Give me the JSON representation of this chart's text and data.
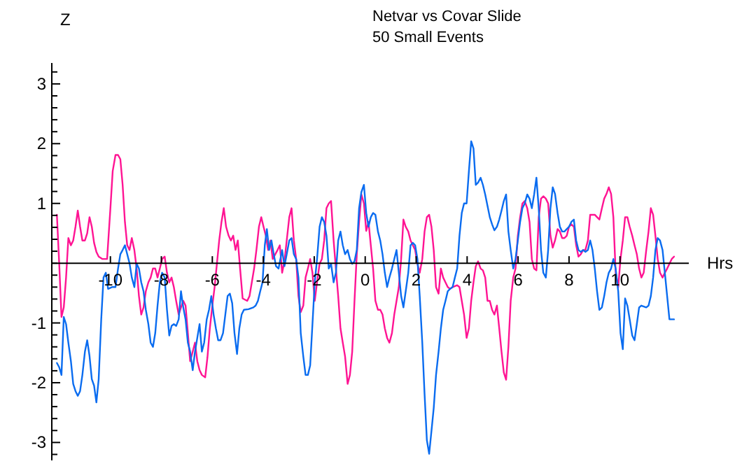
{
  "chart_data": {
    "type": "line",
    "title": "Netvar vs Covar Slide",
    "subtitle": "50 Small Events",
    "xlabel": "Hrs",
    "ylabel": "Z",
    "xlim": [
      -12.3,
      12.7
    ],
    "ylim": [
      -3.3,
      3.35
    ],
    "xticks": [
      -10,
      -8,
      -6,
      -4,
      -2,
      0,
      2,
      4,
      6,
      8,
      10
    ],
    "yticks": [
      {
        "value": -3.2,
        "label": null
      },
      -3,
      {
        "value": -2.8,
        "label": null
      },
      {
        "value": -2.6,
        "label": null
      },
      {
        "value": -2.4,
        "label": null
      },
      {
        "value": -2.2,
        "label": null
      },
      -2,
      {
        "value": -1.8,
        "label": null
      },
      {
        "value": -1.6,
        "label": null
      },
      {
        "value": -1.4,
        "label": null
      },
      {
        "value": -1.2,
        "label": null
      },
      -1,
      {
        "value": -0.8,
        "label": null
      },
      {
        "value": -0.6,
        "label": null
      },
      {
        "value": -0.4,
        "label": null
      },
      {
        "value": -0.2,
        "label": null
      },
      {
        "value": 0,
        "label": null
      },
      {
        "value": 0.2,
        "label": null
      },
      {
        "value": 0.4,
        "label": null
      },
      {
        "value": 0.6,
        "label": null
      },
      {
        "value": 0.8,
        "label": null
      },
      1,
      {
        "value": 1.2,
        "label": null
      },
      {
        "value": 1.4,
        "label": null
      },
      {
        "value": 1.6,
        "label": null
      },
      {
        "value": 1.8,
        "label": null
      },
      2,
      {
        "value": 2.2,
        "label": null
      },
      {
        "value": 2.4,
        "label": null
      },
      {
        "value": 2.6,
        "label": null
      },
      {
        "value": 2.8,
        "label": null
      },
      3,
      {
        "value": 3.2,
        "label": null
      }
    ],
    "line_style": "solid",
    "series": [
      {
        "color": "#ff1493",
        "x": [
          -12.1,
          -12.01,
          -11.92,
          -11.83,
          -11.74,
          -11.65,
          -11.55,
          -11.46,
          -11.37,
          -11.28,
          -11.19,
          -11.1,
          -11,
          -10.91,
          -10.82,
          -10.73,
          -10.64,
          -10.55,
          -10.46,
          -10.31,
          -10.13,
          -10,
          -9.91,
          -9.8,
          -9.7,
          -9.61,
          -9.52,
          -9.43,
          -9.34,
          -9.25,
          -9.16,
          -9.06,
          -8.97,
          -8.88,
          -8.79,
          -8.7,
          -8.61,
          -8.51,
          -8.42,
          -8.33,
          -8.24,
          -8.15,
          -8.06,
          -7.97,
          -7.87,
          -7.78,
          -7.69,
          -7.6,
          -7.51,
          -7.42,
          -7.32,
          -7.23,
          -7.14,
          -7.05,
          -6.96,
          -6.87,
          -6.77,
          -6.68,
          -6.59,
          -6.5,
          -6.41,
          -6.28,
          -6.19,
          -6.1,
          -6,
          -5.91,
          -5.82,
          -5.73,
          -5.64,
          -5.55,
          -5.46,
          -5.36,
          -5.27,
          -5.18,
          -5.09,
          -5,
          -4.91,
          -4.81,
          -4.63,
          -4.54,
          -4.45,
          -4.36,
          -4.27,
          -4.17,
          -4.08,
          -3.99,
          -3.9,
          -3.81,
          -3.72,
          -3.63,
          -3.53,
          -3.44,
          -3.35,
          -3.26,
          -3.17,
          -3.08,
          -2.98,
          -2.89,
          -2.8,
          -2.71,
          -2.62,
          -2.53,
          -2.43,
          -2.34,
          -2.25,
          -2.16,
          -2.07,
          -1.98,
          -1.89,
          -1.79,
          -1.7,
          -1.61,
          -1.52,
          -1.43,
          -1.34,
          -1.24,
          -1.15,
          -1.06,
          -0.97,
          -0.88,
          -0.79,
          -0.69,
          -0.6,
          -0.51,
          -0.42,
          -0.33,
          -0.24,
          -0.15,
          -0.05,
          0.04,
          0.13,
          0.22,
          0.31,
          0.4,
          0.5,
          0.59,
          0.68,
          0.77,
          0.86,
          0.95,
          1.05,
          1.14,
          1.23,
          1.32,
          1.41,
          1.5,
          1.59,
          1.69,
          1.78,
          1.87,
          1.96,
          2.05,
          2.14,
          2.24,
          2.33,
          2.42,
          2.51,
          2.6,
          2.69,
          2.78,
          2.88,
          2.97,
          3.06,
          3.15,
          3.24,
          3.33,
          3.43,
          3.61,
          3.7,
          3.79,
          3.88,
          3.98,
          4.07,
          4.16,
          4.25,
          4.34,
          4.43,
          4.53,
          4.62,
          4.71,
          4.8,
          4.89,
          4.98,
          5.07,
          5.17,
          5.26,
          5.35,
          5.44,
          5.53,
          5.62,
          5.71,
          5.81,
          5.9,
          5.99,
          6.08,
          6.17,
          6.26,
          6.36,
          6.45,
          6.54,
          6.63,
          6.72,
          6.81,
          6.9,
          6.99,
          7.09,
          7.18,
          7.27,
          7.36,
          7.45,
          7.55,
          7.64,
          7.73,
          7.82,
          7.91,
          8,
          8.09,
          8.19,
          8.28,
          8.37,
          8.46,
          8.55,
          8.64,
          8.74,
          8.83,
          8.92,
          9.01,
          9.1,
          9.19,
          9.29,
          9.38,
          9.47,
          9.56,
          9.65,
          9.74,
          9.83,
          9.93,
          10.02,
          10.11,
          10.2,
          10.29,
          10.38,
          10.48,
          10.57,
          10.66,
          10.75,
          10.84,
          10.93,
          11.03,
          11.12,
          11.21,
          11.3,
          11.39,
          11.48,
          11.57,
          11.67,
          11.76,
          11.85,
          11.94,
          12.03,
          12.12
        ],
        "values": [
          0.81,
          0,
          -0.9,
          -0.74,
          -0.24,
          0.42,
          0.3,
          0.38,
          0.61,
          0.88,
          0.61,
          0.38,
          0.38,
          0.5,
          0.77,
          0.61,
          0.34,
          0.19,
          0.11,
          0.07,
          0.07,
          0.92,
          1.54,
          1.81,
          1.81,
          1.74,
          1.31,
          0.69,
          0.3,
          0.22,
          0.42,
          0.22,
          -0.09,
          -0.55,
          -0.86,
          -0.74,
          -0.47,
          -0.32,
          -0.24,
          -0.09,
          -0.09,
          -0.24,
          -0.09,
          0.07,
          0.11,
          -0.16,
          -0.32,
          -0.24,
          -0.4,
          -0.63,
          -0.86,
          -0.74,
          -0.63,
          -0.71,
          -1.17,
          -1.64,
          -1.48,
          -1.33,
          -1.64,
          -1.79,
          -1.87,
          -1.91,
          -1.57,
          -1.1,
          -0.71,
          -0.4,
          -0.01,
          0.38,
          0.69,
          0.92,
          0.61,
          0.46,
          0.38,
          0.46,
          0.22,
          0.38,
          -0.09,
          -0.59,
          -0.63,
          -0.55,
          -0.32,
          -0.09,
          0.22,
          0.61,
          0.77,
          0.61,
          0.46,
          0.22,
          0.38,
          0.07,
          0.15,
          0.22,
          0.3,
          -0.16,
          0.03,
          0.38,
          0.77,
          0.92,
          0.38,
          0.07,
          -0.55,
          -0.82,
          -0.71,
          -0.24,
          -0.09,
          0.07,
          -0.16,
          -0.63,
          -0.32,
          -0.01,
          0.07,
          0.38,
          0.92,
          1,
          1.04,
          0.38,
          -0.09,
          -0.55,
          -1.09,
          -1.33,
          -1.56,
          -2.02,
          -1.87,
          -1.48,
          -0.63,
          0.15,
          0.69,
          1.15,
          1,
          0.54,
          0.69,
          0.3,
          -0.09,
          -0.63,
          -0.78,
          -0.78,
          -0.86,
          -1.09,
          -1.25,
          -1.33,
          -1.17,
          -0.86,
          -0.63,
          -0.4,
          0.07,
          0.73,
          0.61,
          0.53,
          0.38,
          0.3,
          0.22,
          -0.01,
          -0.16,
          0.07,
          0.53,
          0.77,
          0.81,
          0.61,
          0.22,
          -0.4,
          -0.51,
          -0.09,
          -0.24,
          -0.32,
          -0.4,
          -0.43,
          -0.4,
          -0.37,
          -0.4,
          -0.63,
          -0.86,
          -1.25,
          -1.09,
          -0.63,
          -0.32,
          -0.05,
          0.03,
          -0.09,
          -0.12,
          -0.24,
          -0.63,
          -0.63,
          -0.78,
          -0.86,
          -0.71,
          -1.09,
          -1.48,
          -1.83,
          -1.95,
          -1.4,
          -0.63,
          -0.24,
          -0.09,
          0.46,
          0.77,
          1,
          1.04,
          0.92,
          0.69,
          0.07,
          -0.09,
          -0.12,
          0.77,
          1.08,
          1.12,
          1.08,
          1,
          0.46,
          0.26,
          0.38,
          0.57,
          0.53,
          0.42,
          0.42,
          0.46,
          0.61,
          0.65,
          0.61,
          0.3,
          0.11,
          0.15,
          0.22,
          0.22,
          0.38,
          0.81,
          0.81,
          0.81,
          0.77,
          0.73,
          0.92,
          1.08,
          1.16,
          1.27,
          1.16,
          0.77,
          -0.16,
          -0.4,
          0.07,
          0.38,
          0.77,
          0.77,
          0.61,
          0.46,
          0.3,
          0.15,
          -0.09,
          -0.24,
          -0.16,
          0.22,
          0.53,
          0.92,
          0.81,
          0.46,
          0.07,
          -0.16,
          -0.24,
          -0.16,
          -0.09,
          -0.01,
          0.07,
          0.11
        ]
      },
      {
        "color": "#0a6cf0",
        "x": [
          -12.1,
          -12.01,
          -11.92,
          -11.83,
          -11.74,
          -11.65,
          -11.55,
          -11.46,
          -11.37,
          -11.28,
          -11.19,
          -11.1,
          -11,
          -10.91,
          -10.82,
          -10.73,
          -10.64,
          -10.55,
          -10.46,
          -10.36,
          -10.27,
          -10.18,
          -10.09,
          -9.94,
          -9.8,
          -9.7,
          -9.61,
          -9.52,
          -9.43,
          -9.34,
          -9.25,
          -9.16,
          -9.06,
          -8.97,
          -8.88,
          -8.79,
          -8.7,
          -8.61,
          -8.51,
          -8.42,
          -8.33,
          -8.24,
          -8.15,
          -8.06,
          -7.97,
          -7.87,
          -7.78,
          -7.69,
          -7.6,
          -7.51,
          -7.42,
          -7.32,
          -7.23,
          -7.14,
          -7.05,
          -6.96,
          -6.87,
          -6.77,
          -6.68,
          -6.59,
          -6.5,
          -6.41,
          -6.32,
          -6.22,
          -6.13,
          -6.04,
          -5.95,
          -5.86,
          -5.77,
          -5.68,
          -5.58,
          -5.49,
          -5.4,
          -5.31,
          -5.22,
          -5.13,
          -5.03,
          -4.94,
          -4.85,
          -4.76,
          -4.58,
          -4.39,
          -4.3,
          -4.21,
          -4.12,
          -4.03,
          -3.94,
          -3.86,
          -3.77,
          -3.68,
          -3.59,
          -3.5,
          -3.4,
          -3.26,
          -3.17,
          -3.08,
          -2.98,
          -2.89,
          -2.8,
          -2.71,
          -2.62,
          -2.53,
          -2.43,
          -2.34,
          -2.25,
          -2.16,
          -2.07,
          -1.98,
          -1.89,
          -1.79,
          -1.7,
          -1.61,
          -1.52,
          -1.43,
          -1.34,
          -1.24,
          -1.15,
          -1.06,
          -0.97,
          -0.88,
          -0.79,
          -0.69,
          -0.6,
          -0.51,
          -0.42,
          -0.33,
          -0.24,
          -0.15,
          -0.05,
          0.04,
          0.13,
          0.22,
          0.31,
          0.4,
          0.5,
          0.59,
          0.68,
          0.77,
          0.86,
          0.95,
          1.05,
          1.14,
          1.23,
          1.32,
          1.41,
          1.5,
          1.59,
          1.69,
          1.78,
          1.87,
          1.96,
          2.05,
          2.14,
          2.24,
          2.33,
          2.42,
          2.51,
          2.6,
          2.69,
          2.78,
          2.88,
          2.97,
          3.06,
          3.15,
          3.24,
          3.33,
          3.43,
          3.52,
          3.61,
          3.7,
          3.79,
          3.88,
          3.98,
          4.07,
          4.16,
          4.25,
          4.34,
          4.43,
          4.53,
          4.62,
          4.71,
          4.8,
          4.89,
          4.98,
          5.07,
          5.17,
          5.26,
          5.35,
          5.44,
          5.53,
          5.62,
          5.71,
          5.81,
          5.9,
          5.99,
          6.08,
          6.17,
          6.26,
          6.36,
          6.45,
          6.54,
          6.63,
          6.72,
          6.81,
          6.9,
          6.99,
          7.09,
          7.18,
          7.27,
          7.36,
          7.45,
          7.55,
          7.64,
          7.73,
          7.82,
          7.91,
          8,
          8.09,
          8.19,
          8.28,
          8.37,
          8.46,
          8.55,
          8.64,
          8.74,
          8.83,
          8.92,
          9.01,
          9.1,
          9.19,
          9.29,
          9.38,
          9.47,
          9.56,
          9.65,
          9.74,
          9.83,
          9.93,
          10.02,
          10.11,
          10.2,
          10.29,
          10.38,
          10.48,
          10.57,
          10.66,
          10.75,
          10.84,
          11.03,
          11.12,
          11.21,
          11.3,
          11.39,
          11.48,
          11.57,
          11.67,
          11.76,
          11.85,
          11.94,
          12.12
        ],
        "values": [
          -1.67,
          -1.74,
          -1.87,
          -0.9,
          -1.02,
          -1.33,
          -1.64,
          -2.02,
          -2.14,
          -2.22,
          -2.14,
          -1.87,
          -1.48,
          -1.29,
          -1.55,
          -1.94,
          -2.05,
          -2.33,
          -1.94,
          -0.94,
          -0.24,
          -0.16,
          -0.43,
          -0.4,
          -0.4,
          -0.09,
          0.15,
          0.22,
          0.3,
          0.15,
          0,
          -0.24,
          -0.4,
          -0.01,
          -0.09,
          -0.32,
          -0.47,
          -0.78,
          -1.02,
          -1.33,
          -1.4,
          -1.17,
          -0.71,
          -0.32,
          -0.16,
          -0.24,
          -0.78,
          -1.21,
          -1.05,
          -1.02,
          -1.05,
          -0.94,
          -0.47,
          -0.74,
          -0.94,
          -1.33,
          -1.48,
          -1.79,
          -1.48,
          -1.25,
          -1.02,
          -1.48,
          -1.33,
          -0.94,
          -0.78,
          -0.55,
          -0.86,
          -1.09,
          -1.29,
          -1.29,
          -1.17,
          -0.86,
          -0.55,
          -0.51,
          -0.67,
          -1.17,
          -1.52,
          -1.09,
          -0.86,
          -0.78,
          -0.77,
          -0.74,
          -0.71,
          -0.63,
          -0.47,
          -0.32,
          0.3,
          0.57,
          0.22,
          0.38,
          0.15,
          -0.05,
          -0.09,
          0.22,
          -0.05,
          0.15,
          0.38,
          0.42,
          0.15,
          0.07,
          -0.24,
          -1.17,
          -1.56,
          -1.87,
          -1.87,
          -1.71,
          -1.02,
          -0.32,
          0.07,
          0.61,
          0.77,
          0.69,
          0.46,
          -0.09,
          -0.01,
          -0.32,
          -0.16,
          0.38,
          0.53,
          0.3,
          0.15,
          0.22,
          0.07,
          -0.01,
          0.03,
          0.22,
          0.92,
          1.19,
          1.31,
          0.84,
          0.61,
          0.77,
          0.84,
          0.81,
          0.53,
          0.38,
          0.15,
          -0.16,
          -0.4,
          -0.24,
          -0.09,
          0.07,
          0.22,
          -0.16,
          -0.55,
          -0.74,
          -0.47,
          -0.16,
          0.3,
          0.34,
          0.3,
          0.07,
          -0.55,
          -1.33,
          -2.19,
          -2.96,
          -3.19,
          -2.81,
          -2.42,
          -1.87,
          -1.48,
          -1.09,
          -0.78,
          -0.63,
          -0.47,
          -0.43,
          -0.4,
          -0.24,
          -0.09,
          0.46,
          0.84,
          1,
          1,
          1.54,
          2.04,
          1.92,
          1.31,
          1.35,
          1.43,
          1.31,
          1.15,
          0.96,
          0.77,
          0.65,
          0.55,
          0.61,
          0.73,
          0.88,
          1.04,
          1.15,
          0.53,
          0.22,
          -0.09,
          0.07,
          0.38,
          0.69,
          0.92,
          1,
          1.15,
          1.08,
          0.92,
          1.15,
          1.43,
          0.92,
          0.22,
          -0.16,
          -0.24,
          0.22,
          0.92,
          1.27,
          1.16,
          0.84,
          0.61,
          0.53,
          0.53,
          0.57,
          0.61,
          0.69,
          0.73,
          0.38,
          0.22,
          0.19,
          0.22,
          0.19,
          0.22,
          0.38,
          0.22,
          -0.09,
          -0.47,
          -0.78,
          -0.74,
          -0.55,
          -0.32,
          -0.16,
          -0.09,
          0.07,
          -0.09,
          -0.47,
          -1.17,
          -1.44,
          -0.59,
          -0.71,
          -0.94,
          -1.21,
          -1.29,
          -1.02,
          -0.74,
          -0.71,
          -0.74,
          -0.71,
          -0.55,
          -0.24,
          0.22,
          0.42,
          0.38,
          0.22,
          -0.16,
          -0.55,
          -0.94,
          -0.94
        ]
      }
    ]
  }
}
